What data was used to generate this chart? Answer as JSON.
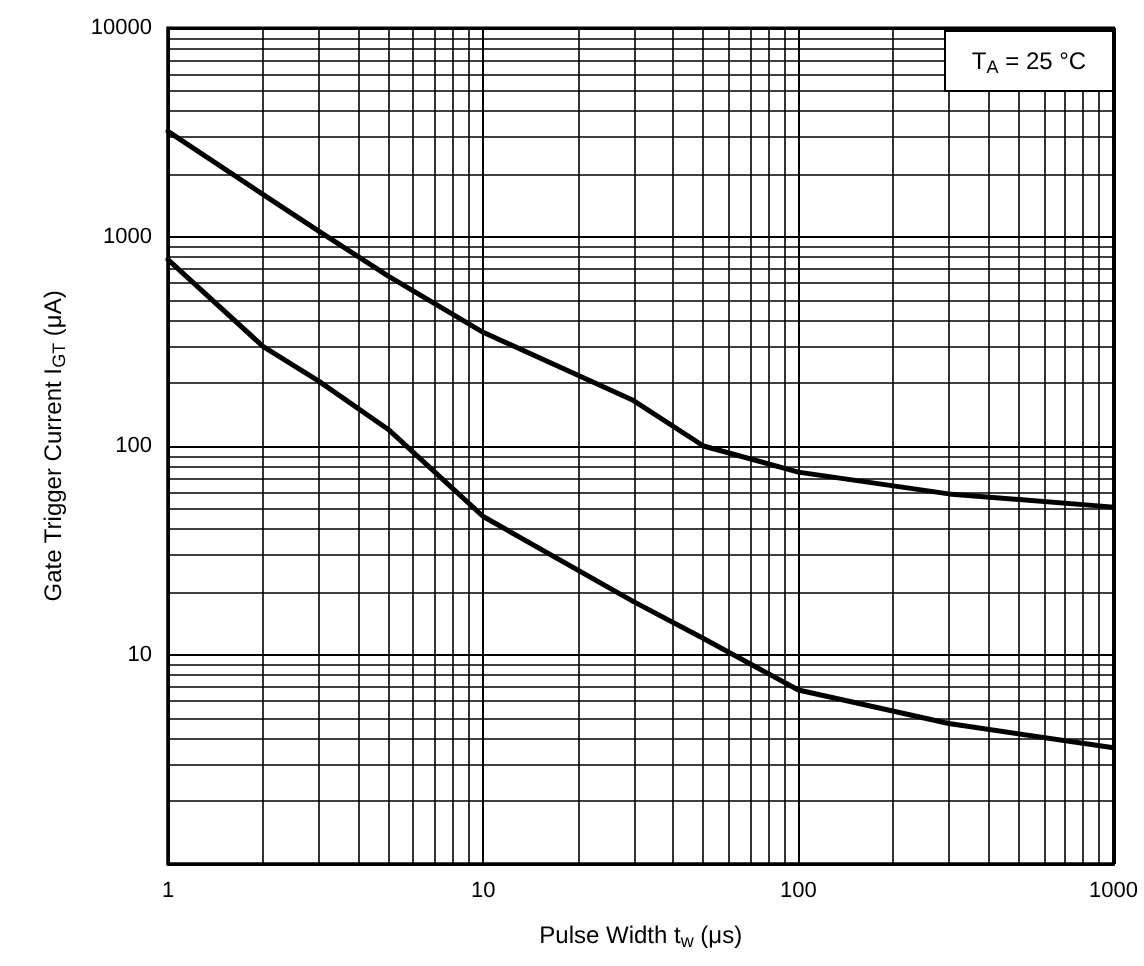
{
  "chart_data": {
    "type": "line",
    "xlabel": "Pulse Width t$_{w}$ (μs)",
    "ylabel": "Gate Trigger Current I$_{GT}$ (μA)",
    "annotations": [
      "T$_{A}$ = 25 °C"
    ],
    "series": [
      {
        "color": "#000000",
        "x": [
          1,
          2,
          3,
          5,
          10,
          30,
          50,
          100,
          300,
          1000
        ],
        "values": [
          3200,
          1600,
          1070,
          650,
          350,
          165,
          100,
          75,
          59,
          51
        ]
      },
      {
        "color": "#000000",
        "x": [
          1,
          2,
          3,
          5,
          10,
          30,
          50,
          100,
          300,
          1000
        ],
        "values": [
          780,
          300,
          205,
          120,
          46,
          18,
          12,
          6.8,
          4.7,
          3.6
        ]
      }
    ],
    "log": "xy",
    "xlim": [
      1,
      1000
    ],
    "ylim": [
      1,
      10000
    ],
    "xticks": [
      1,
      10,
      100,
      1000
    ],
    "yticks": [
      10,
      100,
      1000,
      10000
    ],
    "grid": true,
    "marker": "none",
    "line_style": "solid"
  }
}
